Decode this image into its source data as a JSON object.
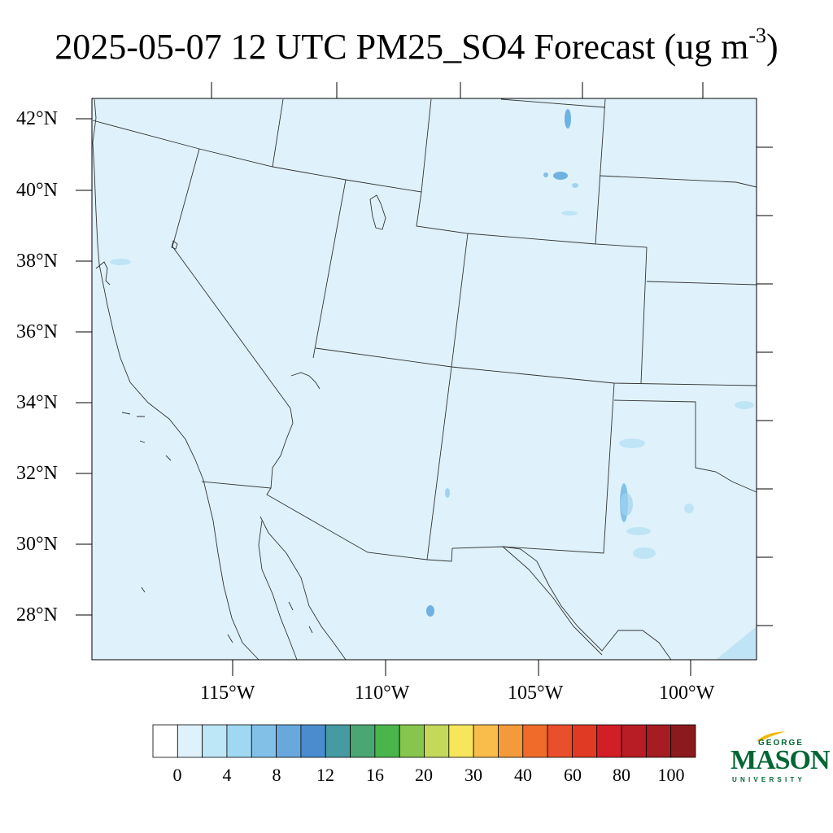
{
  "title": {
    "main": "2025-05-07 12 UTC PM25_SO4 Forecast (ug m",
    "exponent": "-3",
    "close": ")"
  },
  "map": {
    "lat_labels": [
      "42°N",
      "40°N",
      "38°N",
      "36°N",
      "34°N",
      "32°N",
      "30°N",
      "28°N"
    ],
    "lon_labels": [
      "115°W",
      "110°W",
      "105°W",
      "100°W"
    ],
    "background_level": "0-2",
    "colors": {
      "fill": "#dff2fb",
      "patch_light": "#bfe4f6",
      "patch_mid": "#9fd3f0",
      "patch_dark": "#6fb2e2",
      "boundary": "#333333"
    }
  },
  "colorbar": {
    "labels": [
      "0",
      "4",
      "8",
      "12",
      "16",
      "20",
      "30",
      "40",
      "60",
      "80",
      "100"
    ],
    "colors": [
      "#ffffff",
      "#dff2fb",
      "#bde6f6",
      "#a0d8f3",
      "#82c0e8",
      "#69a8dc",
      "#4a8cce",
      "#479aa2",
      "#4aa672",
      "#4ab54a",
      "#86c54e",
      "#c4d85a",
      "#f7e55b",
      "#f8bd4a",
      "#f49a3b",
      "#f06b2a",
      "#e94f2b",
      "#e03a25",
      "#d21f27",
      "#b81c24",
      "#a51c22",
      "#8b1a1c"
    ]
  },
  "logo": {
    "top": "GEORGE",
    "name": "MASON",
    "bottom": "UNIVERSITY"
  }
}
